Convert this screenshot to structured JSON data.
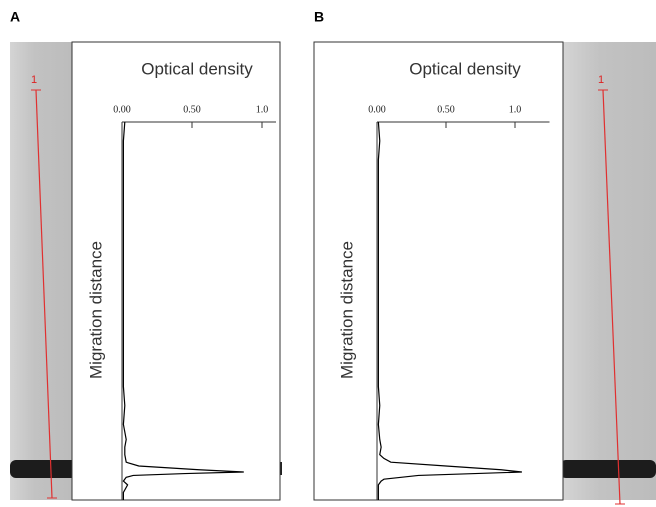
{
  "chart_data": [
    {
      "type": "line",
      "panel": "A",
      "lane_label": "1",
      "xlabel": "Optical density",
      "ylabel": "Migration distance",
      "xlim": [
        0,
        1.1
      ],
      "xticks": [
        {
          "value": 0,
          "label": "0.00"
        },
        {
          "value": 0.5,
          "label": "0.50"
        },
        {
          "value": 1,
          "label": "1.0"
        }
      ],
      "ylim": [
        0,
        100
      ],
      "color": "#000000",
      "y": [
        0,
        5,
        10,
        20,
        30,
        40,
        50,
        60,
        70,
        75,
        80,
        84,
        86,
        88,
        90,
        91,
        92,
        92.6,
        93,
        93.5,
        94,
        95,
        96,
        98,
        100
      ],
      "values": [
        0.02,
        0.01,
        0.01,
        0.01,
        0.01,
        0.01,
        0.01,
        0.01,
        0.01,
        0.02,
        0.01,
        0.03,
        0.02,
        0.02,
        0.03,
        0.12,
        0.55,
        0.87,
        0.45,
        0.08,
        0.03,
        0.01,
        0.04,
        0.01,
        0.01
      ]
    },
    {
      "type": "line",
      "panel": "B",
      "lane_label": "1",
      "xlabel": "Optical density",
      "ylabel": "Migration distance",
      "xlim": [
        0,
        1.25
      ],
      "xticks": [
        {
          "value": 0,
          "label": "0.00"
        },
        {
          "value": 0.5,
          "label": "0.50"
        },
        {
          "value": 1,
          "label": "1.0"
        }
      ],
      "ylim": [
        0,
        100
      ],
      "color": "#000000",
      "y": [
        0,
        5,
        10,
        20,
        30,
        40,
        50,
        60,
        70,
        75,
        80,
        84,
        86,
        88,
        89,
        90,
        91,
        92,
        92.6,
        93.5,
        94.5,
        95,
        96,
        98,
        100
      ],
      "values": [
        0.01,
        0.02,
        0.01,
        0.01,
        0.01,
        0.01,
        0.01,
        0.01,
        0.01,
        0.02,
        0.01,
        0.02,
        0.03,
        0.02,
        0.05,
        0.1,
        0.5,
        0.9,
        1.05,
        0.3,
        0.05,
        0.03,
        0.01,
        0.01,
        0.01
      ]
    }
  ]
}
